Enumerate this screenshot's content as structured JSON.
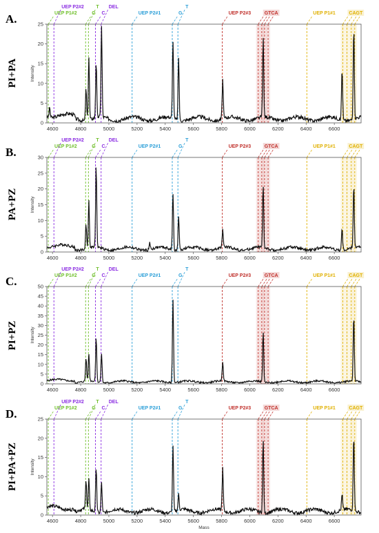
{
  "colors": {
    "green": "#6fbf2a",
    "purple": "#8a2be2",
    "blue": "#2c9fd8",
    "red": "#c0302b",
    "gold": "#e0b000",
    "trace": "#111111"
  },
  "chart_data": [
    {
      "type": "line",
      "panel": "A.",
      "condition": "PI+PA",
      "xlabel": "",
      "ylabel": "Intensity",
      "xlim": [
        4560,
        6790
      ],
      "ylim": [
        0,
        25
      ],
      "xticks": [
        4600,
        4800,
        5000,
        5200,
        5400,
        5600,
        5800,
        6000,
        6200,
        6400,
        6600
      ],
      "yticks": [
        0,
        5,
        10,
        15,
        20,
        25
      ],
      "peaks": [
        {
          "x": 4580,
          "y": 2.5
        },
        {
          "x": 4838,
          "y": 8
        },
        {
          "x": 4858,
          "y": 16
        },
        {
          "x": 4910,
          "y": 14
        },
        {
          "x": 4948,
          "y": 23
        },
        {
          "x": 5455,
          "y": 20
        },
        {
          "x": 5495,
          "y": 16
        },
        {
          "x": 5808,
          "y": 10
        },
        {
          "x": 6095,
          "y": 20
        },
        {
          "x": 6655,
          "y": 13
        },
        {
          "x": 6738,
          "y": 23
        }
      ]
    },
    {
      "type": "line",
      "panel": "B.",
      "condition": "PA+PZ",
      "xlabel": "",
      "ylabel": "Intensity",
      "xlim": [
        4560,
        6790
      ],
      "ylim": [
        0,
        30
      ],
      "xticks": [
        4600,
        4800,
        5000,
        5200,
        5400,
        5600,
        5800,
        6000,
        6200,
        6400,
        6600
      ],
      "yticks": [
        0,
        5,
        10,
        15,
        20,
        25,
        30
      ],
      "peaks": [
        {
          "x": 4838,
          "y": 8
        },
        {
          "x": 4858,
          "y": 15
        },
        {
          "x": 4910,
          "y": 26
        },
        {
          "x": 5290,
          "y": 2
        },
        {
          "x": 5455,
          "y": 18
        },
        {
          "x": 5495,
          "y": 11
        },
        {
          "x": 5808,
          "y": 6
        },
        {
          "x": 6095,
          "y": 20
        },
        {
          "x": 6655,
          "y": 7
        },
        {
          "x": 6738,
          "y": 20
        }
      ]
    },
    {
      "type": "line",
      "panel": "C.",
      "condition": "PI+PZ",
      "xlabel": "",
      "ylabel": "Intensity",
      "xlim": [
        4560,
        6790
      ],
      "ylim": [
        0,
        50
      ],
      "xticks": [
        4600,
        4800,
        5000,
        5200,
        5400,
        5600,
        5800,
        6000,
        6200,
        6400,
        6600
      ],
      "yticks": [
        0,
        5,
        10,
        15,
        20,
        25,
        30,
        35,
        40,
        45,
        50
      ],
      "peaks": [
        {
          "x": 4838,
          "y": 12
        },
        {
          "x": 4858,
          "y": 14
        },
        {
          "x": 4910,
          "y": 23
        },
        {
          "x": 4948,
          "y": 15
        },
        {
          "x": 5455,
          "y": 43
        },
        {
          "x": 5808,
          "y": 10
        },
        {
          "x": 6095,
          "y": 26
        },
        {
          "x": 6738,
          "y": 34
        }
      ]
    },
    {
      "type": "line",
      "panel": "D.",
      "condition": "PI+PA+PZ",
      "xlabel": "Mass",
      "ylabel": "Intensity",
      "xlim": [
        4560,
        6790
      ],
      "ylim": [
        0,
        25
      ],
      "xticks": [
        4600,
        4800,
        5000,
        5200,
        5400,
        5600,
        5800,
        6000,
        6200,
        6400,
        6600
      ],
      "yticks": [
        0,
        5,
        10,
        15,
        20,
        25
      ],
      "peaks": [
        {
          "x": 4838,
          "y": 8
        },
        {
          "x": 4858,
          "y": 8
        },
        {
          "x": 4910,
          "y": 12
        },
        {
          "x": 4948,
          "y": 8
        },
        {
          "x": 5455,
          "y": 17
        },
        {
          "x": 5495,
          "y": 4
        },
        {
          "x": 5808,
          "y": 11
        },
        {
          "x": 6095,
          "y": 19
        },
        {
          "x": 6655,
          "y": 4
        },
        {
          "x": 6738,
          "y": 20
        }
      ]
    }
  ],
  "markers": [
    {
      "label": "UEP P1#2",
      "x": 4570,
      "color": "green",
      "row": 0,
      "highlight": false
    },
    {
      "label": "UEP P2#2",
      "x": 4610,
      "color": "purple",
      "row": 1,
      "highlight": false
    },
    {
      "label": "G",
      "x": 4835,
      "color": "green",
      "row": 0,
      "highlight": false
    },
    {
      "label": "T",
      "x": 4855,
      "color": "green",
      "row": 1,
      "highlight": false
    },
    {
      "label": "C",
      "x": 4905,
      "color": "purple",
      "row": 0,
      "highlight": false
    },
    {
      "label": "DEL",
      "x": 4945,
      "color": "purple",
      "row": 1,
      "highlight": false
    },
    {
      "label": "UEP P2#1",
      "x": 5165,
      "color": "blue",
      "row": 0,
      "highlight": false
    },
    {
      "label": "G",
      "x": 5450,
      "color": "blue",
      "row": 0,
      "highlight": false
    },
    {
      "label": "T",
      "x": 5490,
      "color": "blue",
      "row": 1,
      "highlight": false
    },
    {
      "label": "UEP P2#3",
      "x": 5805,
      "color": "red",
      "row": 0,
      "highlight": false
    },
    {
      "label": "GTCA",
      "x": 6060,
      "color": "red",
      "row": 0,
      "highlight": true
    },
    {
      "label": "",
      "x": 6085,
      "color": "red",
      "row": 0,
      "highlight": true
    },
    {
      "label": "",
      "x": 6105,
      "color": "red",
      "row": 0,
      "highlight": true
    },
    {
      "label": "",
      "x": 6130,
      "color": "red",
      "row": 0,
      "highlight": true
    },
    {
      "label": "UEP P1#1",
      "x": 6405,
      "color": "gold",
      "row": 0,
      "highlight": false
    },
    {
      "label": "CAGT",
      "x": 6660,
      "color": "gold",
      "row": 0,
      "highlight": true
    },
    {
      "label": "",
      "x": 6690,
      "color": "gold",
      "row": 0,
      "highlight": true
    },
    {
      "label": "",
      "x": 6720,
      "color": "gold",
      "row": 0,
      "highlight": true
    },
    {
      "label": "",
      "x": 6745,
      "color": "gold",
      "row": 0,
      "highlight": true
    }
  ]
}
